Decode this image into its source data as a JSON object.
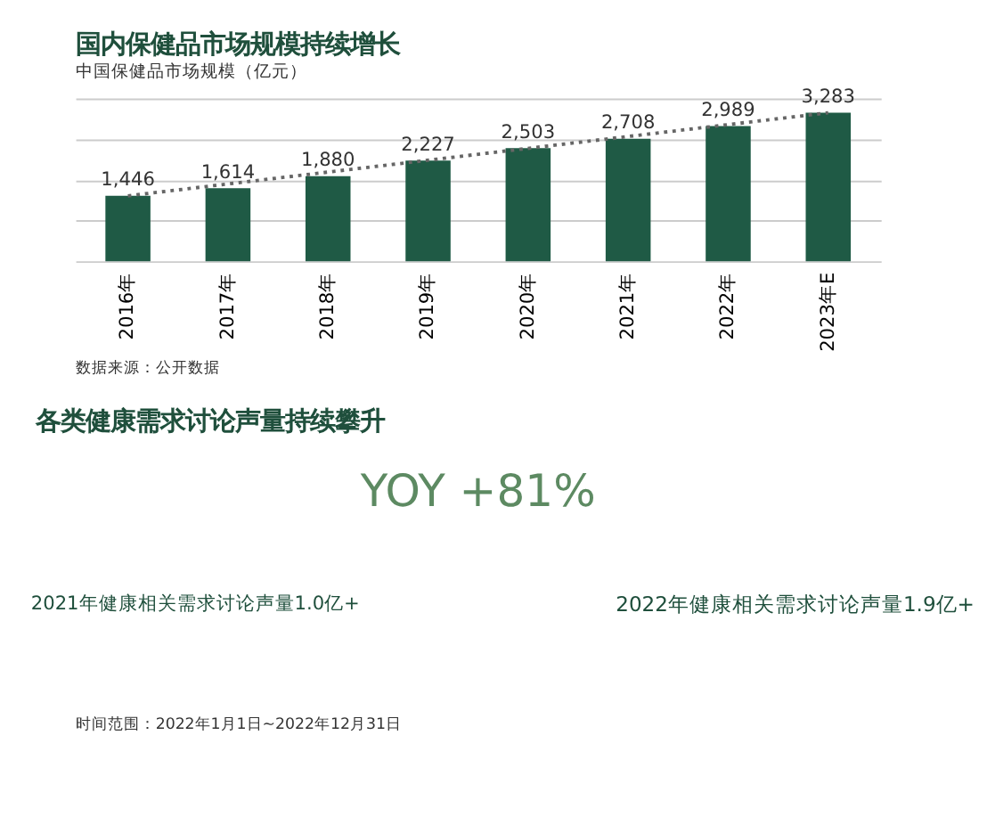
{
  "chart_data": [
    {
      "type": "bar",
      "title": "国内保健品市场规模持续增长",
      "subtitle": "中国保健品市场规模（亿元）",
      "categories": [
        "2016年",
        "2017年",
        "2018年",
        "2019年",
        "2020年",
        "2021年",
        "2022年",
        "2023年E"
      ],
      "series": [
        {
          "color": "#1f5a45",
          "values": [
            1446,
            1614,
            1880,
            2227,
            2503,
            2708,
            2989,
            3283
          ],
          "value_labels": [
            "1,446",
            "1,614",
            "1,880",
            "2,227",
            "2,503",
            "2,708",
            "2,989",
            "3,283"
          ]
        },
        {
          "type": "line",
          "x": [
            "2016年",
            "2023年E"
          ],
          "values": [
            1446,
            3283
          ],
          "color": "#666666",
          "line_style": "dotted"
        }
      ],
      "ylim": [
        0,
        3600
      ],
      "yticks": [
        {
          "value": 0,
          "label": null
        },
        {
          "value": 900,
          "label": null
        },
        {
          "value": 1800,
          "label": null
        },
        {
          "value": 2700,
          "label": null
        },
        {
          "value": 3600,
          "label": null
        }
      ],
      "grid": "y",
      "tick_labels": "x",
      "annotations": [
        "数据来源：公开数据"
      ]
    },
    {
      "type": "other",
      "title": "各类健康需求讨论声量持续攀升",
      "annotations": [
        "YOY +81%",
        "2021年健康相关需求讨论声量1.0亿+",
        "2022年健康相关需求讨论声量1.9亿+",
        "时间范围：2022年1月1日~2022年12月31日"
      ]
    }
  ]
}
